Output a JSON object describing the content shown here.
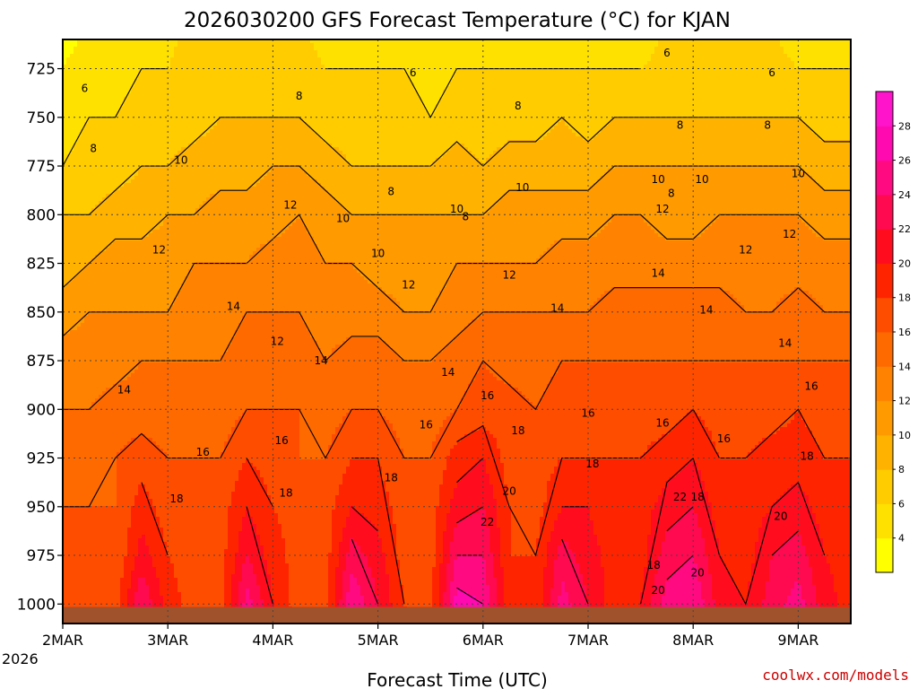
{
  "chart_data": {
    "type": "heatmap",
    "title": "2026030200 GFS Forecast Temperature (°C) for KJAN",
    "xlabel": "Forecast Time (UTC)",
    "ylabel": "",
    "y_levels_hPa": [
      725,
      750,
      775,
      800,
      825,
      850,
      875,
      900,
      925,
      950,
      975,
      1000
    ],
    "ylim": [
      710,
      1010
    ],
    "x_ticks": [
      "2MAR",
      "3MAR",
      "4MAR",
      "5MAR",
      "6MAR",
      "7MAR",
      "8MAR",
      "9MAR"
    ],
    "x_tick_hours": [
      0,
      24,
      48,
      72,
      96,
      120,
      144,
      168
    ],
    "x_year_label": "2026",
    "xlim_hours": [
      0,
      180
    ],
    "grid": true,
    "colorbar": {
      "levels": [
        4,
        6,
        8,
        10,
        12,
        14,
        16,
        18,
        20,
        22,
        24,
        26,
        28
      ],
      "colors": [
        "#ffff00",
        "#ffe100",
        "#ffcc00",
        "#ffb300",
        "#ff9a00",
        "#ff8300",
        "#ff6a00",
        "#ff4d00",
        "#ff2400",
        "#ff0d1f",
        "#ff0a50",
        "#ff0a80",
        "#ff0ab0",
        "#ff14cc"
      ]
    },
    "surface_color": "#a0522d",
    "profiles": [
      {
        "hour": 0,
        "temps": [
          4,
          5,
          6,
          8,
          9,
          11,
          13,
          14,
          15,
          16,
          16,
          17
        ]
      },
      {
        "hour": 6,
        "temps": [
          5,
          6,
          7,
          8,
          10,
          12,
          13,
          14,
          15,
          16,
          17,
          17
        ]
      },
      {
        "hour": 12,
        "temps": [
          5,
          6,
          7,
          9,
          11,
          12,
          13,
          15,
          16,
          16,
          16,
          17
        ]
      },
      {
        "hour": 18,
        "temps": [
          6,
          7,
          8,
          9,
          11,
          12,
          14,
          15,
          17,
          19,
          21,
          24
        ]
      },
      {
        "hour": 24,
        "temps": [
          6,
          7,
          8,
          10,
          11,
          12,
          14,
          15,
          16,
          17,
          18,
          19
        ]
      },
      {
        "hour": 30,
        "temps": [
          7,
          7,
          9,
          10,
          12,
          13,
          14,
          15,
          16,
          17,
          17,
          17
        ]
      },
      {
        "hour": 36,
        "temps": [
          7,
          8,
          9,
          11,
          12,
          13,
          14,
          15,
          16,
          17,
          17,
          17
        ]
      },
      {
        "hour": 42,
        "temps": [
          7,
          8,
          9,
          11,
          12,
          14,
          15,
          16,
          18,
          20,
          22,
          25
        ]
      },
      {
        "hour": 48,
        "temps": [
          7,
          8,
          10,
          11,
          13,
          14,
          15,
          16,
          17,
          18,
          19,
          20
        ]
      },
      {
        "hour": 54,
        "temps": [
          7,
          8,
          10,
          12,
          13,
          14,
          15,
          16,
          16,
          17,
          17,
          17
        ]
      },
      {
        "hour": 60,
        "temps": [
          6,
          7,
          9,
          11,
          12,
          13,
          14,
          15,
          16,
          17,
          17,
          17
        ]
      },
      {
        "hour": 66,
        "temps": [
          6,
          7,
          8,
          10,
          12,
          13,
          15,
          16,
          18,
          20,
          23,
          26
        ]
      },
      {
        "hour": 72,
        "temps": [
          6,
          7,
          8,
          10,
          11,
          13,
          15,
          16,
          18,
          19,
          21,
          22
        ]
      },
      {
        "hour": 78,
        "temps": [
          6,
          7,
          8,
          10,
          11,
          12,
          14,
          15,
          16,
          17,
          17,
          18
        ]
      },
      {
        "hour": 84,
        "temps": [
          5,
          6,
          8,
          10,
          11,
          12,
          14,
          15,
          16,
          17,
          17,
          17
        ]
      },
      {
        "hour": 90,
        "temps": [
          6,
          7,
          9,
          10,
          12,
          13,
          15,
          16,
          19,
          21,
          24,
          27
        ]
      },
      {
        "hour": 96,
        "temps": [
          6,
          7,
          8,
          10,
          12,
          14,
          16,
          17,
          20,
          22,
          24,
          26
        ]
      },
      {
        "hour": 102,
        "temps": [
          6,
          7,
          9,
          11,
          12,
          14,
          15,
          17,
          17,
          18,
          18,
          19
        ]
      },
      {
        "hour": 108,
        "temps": [
          6,
          7,
          9,
          11,
          12,
          14,
          15,
          16,
          17,
          17,
          18,
          18
        ]
      },
      {
        "hour": 114,
        "temps": [
          6,
          8,
          9,
          11,
          13,
          14,
          16,
          17,
          18,
          20,
          23,
          25
        ]
      },
      {
        "hour": 120,
        "temps": [
          6,
          7,
          9,
          11,
          13,
          14,
          16,
          17,
          18,
          20,
          21,
          22
        ]
      },
      {
        "hour": 126,
        "temps": [
          6,
          8,
          10,
          12,
          13,
          15,
          16,
          17,
          18,
          18,
          19,
          19
        ]
      },
      {
        "hour": 132,
        "temps": [
          6,
          8,
          10,
          12,
          13,
          15,
          16,
          17,
          18,
          19,
          19,
          20
        ]
      },
      {
        "hour": 138,
        "temps": [
          7,
          8,
          10,
          11,
          13,
          15,
          16,
          17,
          19,
          21,
          23,
          25
        ]
      },
      {
        "hour": 144,
        "temps": [
          7,
          8,
          10,
          11,
          13,
          15,
          16,
          18,
          20,
          22,
          24,
          26
        ]
      },
      {
        "hour": 150,
        "temps": [
          7,
          8,
          10,
          12,
          13,
          15,
          16,
          17,
          18,
          19,
          20,
          21
        ]
      },
      {
        "hour": 156,
        "temps": [
          7,
          8,
          10,
          12,
          13,
          14,
          16,
          17,
          18,
          19,
          19,
          20
        ]
      },
      {
        "hour": 162,
        "temps": [
          7,
          8,
          10,
          12,
          13,
          14,
          16,
          17,
          19,
          20,
          22,
          23
        ]
      },
      {
        "hour": 168,
        "temps": [
          6,
          8,
          10,
          12,
          13,
          15,
          16,
          18,
          19,
          21,
          23,
          25
        ]
      },
      {
        "hour": 174,
        "temps": [
          6,
          7,
          9,
          11,
          13,
          14,
          16,
          17,
          18,
          19,
          20,
          21
        ]
      },
      {
        "hour": 180,
        "temps": [
          6,
          7,
          9,
          11,
          13,
          14,
          16,
          17,
          18,
          18,
          19,
          19
        ]
      }
    ],
    "contour_labels": [
      {
        "text": "6",
        "hour": 5,
        "p": 735
      },
      {
        "text": "8",
        "hour": 7,
        "p": 766
      },
      {
        "text": "10",
        "hour": 27,
        "p": 772
      },
      {
        "text": "12",
        "hour": 22,
        "p": 818
      },
      {
        "text": "14",
        "hour": 14,
        "p": 890
      },
      {
        "text": "14",
        "hour": 39,
        "p": 847
      },
      {
        "text": "16",
        "hour": 32,
        "p": 922
      },
      {
        "text": "18",
        "hour": 26,
        "p": 946
      },
      {
        "text": "8",
        "hour": 54,
        "p": 739
      },
      {
        "text": "12",
        "hour": 52,
        "p": 795
      },
      {
        "text": "12",
        "hour": 49,
        "p": 865
      },
      {
        "text": "16",
        "hour": 50,
        "p": 916
      },
      {
        "text": "18",
        "hour": 51,
        "p": 943
      },
      {
        "text": "14",
        "hour": 59,
        "p": 875
      },
      {
        "text": "6",
        "hour": 80,
        "p": 727
      },
      {
        "text": "8",
        "hour": 75,
        "p": 788
      },
      {
        "text": "10",
        "hour": 64,
        "p": 802
      },
      {
        "text": "10",
        "hour": 72,
        "p": 820
      },
      {
        "text": "12",
        "hour": 79,
        "p": 836
      },
      {
        "text": "14",
        "hour": 88,
        "p": 881
      },
      {
        "text": "16",
        "hour": 83,
        "p": 908
      },
      {
        "text": "18",
        "hour": 75,
        "p": 935
      },
      {
        "text": "10",
        "hour": 90,
        "p": 797
      },
      {
        "text": "8",
        "hour": 92,
        "p": 801
      },
      {
        "text": "8",
        "hour": 104,
        "p": 744
      },
      {
        "text": "10",
        "hour": 105,
        "p": 786
      },
      {
        "text": "12",
        "hour": 102,
        "p": 831
      },
      {
        "text": "14",
        "hour": 113,
        "p": 848
      },
      {
        "text": "16",
        "hour": 97,
        "p": 893
      },
      {
        "text": "18",
        "hour": 104,
        "p": 911
      },
      {
        "text": "20",
        "hour": 102,
        "p": 942
      },
      {
        "text": "22",
        "hour": 97,
        "p": 958
      },
      {
        "text": "16",
        "hour": 120,
        "p": 902
      },
      {
        "text": "18",
        "hour": 121,
        "p": 928
      },
      {
        "text": "6",
        "hour": 138,
        "p": 717
      },
      {
        "text": "8",
        "hour": 141,
        "p": 754
      },
      {
        "text": "10",
        "hour": 136,
        "p": 782
      },
      {
        "text": "8",
        "hour": 139,
        "p": 789
      },
      {
        "text": "12",
        "hour": 137,
        "p": 797
      },
      {
        "text": "14",
        "hour": 136,
        "p": 830
      },
      {
        "text": "16",
        "hour": 137,
        "p": 907
      },
      {
        "text": "18",
        "hour": 135,
        "p": 980
      },
      {
        "text": "20",
        "hour": 136,
        "p": 993
      },
      {
        "text": "22",
        "hour": 141,
        "p": 945
      },
      {
        "text": "18",
        "hour": 145,
        "p": 945
      },
      {
        "text": "20",
        "hour": 145,
        "p": 984
      },
      {
        "text": "10",
        "hour": 146,
        "p": 782
      },
      {
        "text": "14",
        "hour": 147,
        "p": 849
      },
      {
        "text": "12",
        "hour": 156,
        "p": 818
      },
      {
        "text": "16",
        "hour": 151,
        "p": 915
      },
      {
        "text": "8",
        "hour": 161,
        "p": 754
      },
      {
        "text": "6",
        "hour": 162,
        "p": 727
      },
      {
        "text": "10",
        "hour": 168,
        "p": 779
      },
      {
        "text": "12",
        "hour": 166,
        "p": 810
      },
      {
        "text": "14",
        "hour": 165,
        "p": 866
      },
      {
        "text": "16",
        "hour": 171,
        "p": 888
      },
      {
        "text": "18",
        "hour": 170,
        "p": 924
      },
      {
        "text": "20",
        "hour": 164,
        "p": 955
      }
    ]
  },
  "credit": "coolwx.com/models"
}
